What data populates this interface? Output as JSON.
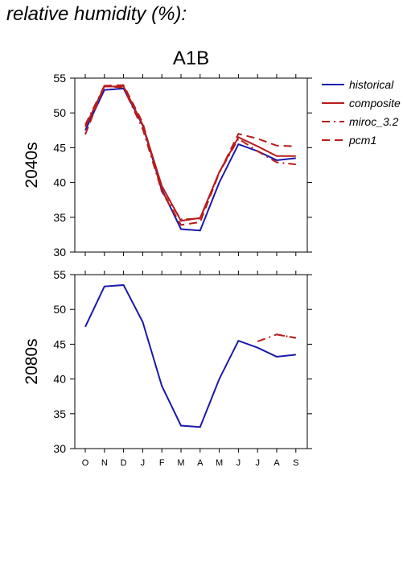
{
  "page_title": "relative humidity (%):",
  "chart_data": {
    "type": "line",
    "title": "A1B",
    "x": [
      "O",
      "N",
      "D",
      "J",
      "F",
      "M",
      "A",
      "M",
      "J",
      "J",
      "A",
      "S"
    ],
    "ylim": [
      30,
      55
    ],
    "yticks": [
      30,
      35,
      40,
      45,
      50,
      55
    ],
    "grid": false,
    "legend_position": "top-right, outside plot",
    "legend": [
      {
        "name": "historical",
        "color": "#1a1aaa",
        "dash": "solid"
      },
      {
        "name": "composite",
        "color": "#b81c1c",
        "dash": "solid"
      },
      {
        "name": "miroc_3.2",
        "color": "#b81c1c",
        "dash": "dash-dot"
      },
      {
        "name": "pcm1",
        "color": "#b81c1c",
        "dash": "dashed"
      }
    ],
    "panels": [
      {
        "label": "2040s",
        "series": [
          {
            "name": "historical",
            "values": [
              47.5,
              53.3,
              53.5,
              48.2,
              39.0,
              33.3,
              33.1,
              40.0,
              45.5,
              44.5,
              43.2,
              43.5
            ]
          },
          {
            "name": "composite",
            "values": [
              48.0,
              53.8,
              53.8,
              48.3,
              39.5,
              34.5,
              34.9,
              41.5,
              46.5,
              45.2,
              43.8,
              43.8
            ]
          },
          {
            "name": "miroc_3.2",
            "values": [
              48.3,
              53.9,
              53.6,
              47.7,
              38.7,
              34.7,
              34.8,
              41.4,
              46.3,
              44.5,
              42.9,
              42.6
            ]
          },
          {
            "name": "pcm1",
            "values": [
              46.9,
              53.9,
              54.0,
              48.6,
              38.7,
              33.9,
              34.3,
              41.4,
              47.0,
              46.3,
              45.3,
              45.2
            ]
          }
        ]
      },
      {
        "label": "2080s",
        "series": [
          {
            "name": "historical",
            "values": [
              47.5,
              53.3,
              53.5,
              48.2,
              39.0,
              33.3,
              33.1,
              40.0,
              45.5,
              44.5,
              43.2,
              43.5
            ]
          },
          {
            "name": "miroc_3.2",
            "values": [
              null,
              null,
              null,
              null,
              null,
              null,
              null,
              null,
              null,
              45.4,
              46.4,
              45.9
            ]
          },
          {
            "name": "pcm1",
            "values": [
              null,
              null,
              null,
              null,
              null,
              null,
              null,
              null,
              null,
              null,
              46.4,
              45.9
            ]
          }
        ]
      }
    ]
  }
}
